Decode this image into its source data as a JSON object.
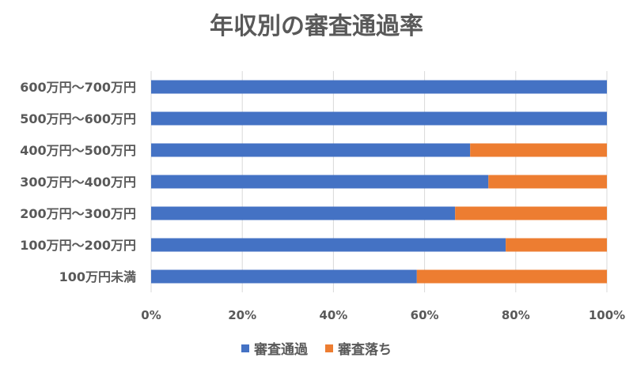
{
  "chart_data": {
    "type": "bar",
    "orientation": "horizontal",
    "stacked": "percent",
    "title": "年収別の審査通過率",
    "categories": [
      "600万円～700万円",
      "500万円～600万円",
      "400万円～500万円",
      "300万円～400万円",
      "200万円～300万円",
      "100万円～200万円",
      "100万円未満"
    ],
    "series": [
      {
        "name": "審査通過",
        "color": "#4472C4",
        "values": [
          100,
          100,
          70,
          74,
          66.7,
          77.8,
          58.3
        ]
      },
      {
        "name": "審査落ち",
        "color": "#ED7D31",
        "values": [
          0,
          0,
          30,
          26,
          33.3,
          22.2,
          41.7
        ]
      }
    ],
    "x_ticks": [
      "0%",
      "20%",
      "40%",
      "60%",
      "80%",
      "100%"
    ],
    "xlim": [
      0,
      100
    ],
    "grid": true,
    "legend_position": "bottom"
  }
}
